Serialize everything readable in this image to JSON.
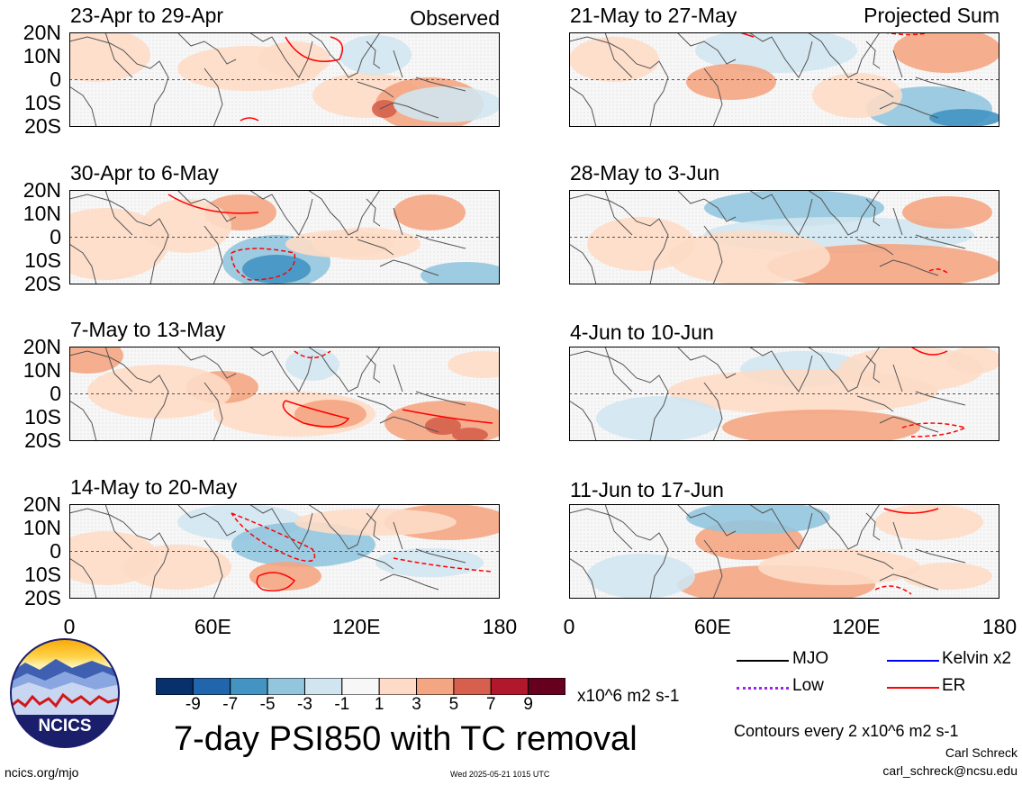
{
  "panels": [
    {
      "title": "23-Apr to 29-Apr",
      "tag": "Observed"
    },
    {
      "title": "30-Apr to 6-May",
      "tag": ""
    },
    {
      "title": "7-May to 13-May",
      "tag": ""
    },
    {
      "title": "14-May to 20-May",
      "tag": ""
    },
    {
      "title": "21-May to 27-May",
      "tag": "Projected Sum"
    },
    {
      "title": "28-May to 3-Jun",
      "tag": ""
    },
    {
      "title": "4-Jun to 10-Jun",
      "tag": ""
    },
    {
      "title": "11-Jun to 17-Jun",
      "tag": ""
    }
  ],
  "lat_labels": [
    "20N",
    "10N",
    "0",
    "10S",
    "20S"
  ],
  "lon_labels": [
    "0",
    "60E",
    "120E",
    "180"
  ],
  "colorbar": {
    "colors": [
      "#08306b",
      "#2166ac",
      "#4393c3",
      "#92c5de",
      "#d1e5f0",
      "#f7f7f7",
      "#fddbc7",
      "#f4a582",
      "#d6604d",
      "#b2182b",
      "#67001f"
    ],
    "ticks": [
      "-9",
      "-7",
      "-5",
      "-3",
      "-1",
      "1",
      "3",
      "5",
      "7",
      "9"
    ],
    "units": "x10^6 m2 s-1"
  },
  "title": "7-day PSI850 with TC removal",
  "legend": {
    "items": [
      {
        "label": "MJO",
        "color": "#000000",
        "style": "solid"
      },
      {
        "label": "Kelvin x2",
        "color": "#0000ff",
        "style": "solid"
      },
      {
        "label": "Low",
        "color": "#a020f0",
        "style": "dotted"
      },
      {
        "label": "ER",
        "color": "#ff0000",
        "style": "solid"
      }
    ],
    "contour_note": "Contours every 2 x10^6 m2 s-1"
  },
  "author": "Carl Schreck",
  "email": "carl_schreck@ncsu.edu",
  "site": "ncics.org/mjo",
  "timestamp": "Wed 2025-05-21 1015 UTC",
  "logo_text": "NCICS"
}
